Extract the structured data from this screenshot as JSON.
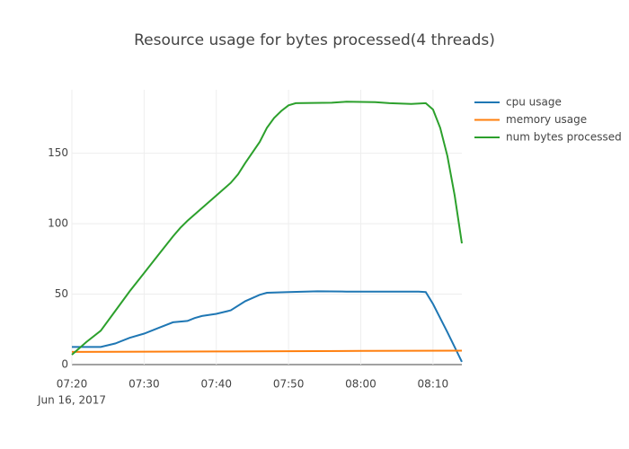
{
  "chart_data": {
    "type": "line",
    "title": "Resource usage for bytes processed(4 threads)",
    "date_label": "Jun 16, 2017",
    "xlim": [
      "2017-06-16 07:20",
      "2017-06-16 08:14"
    ],
    "xticks": [
      {
        "value": "2017-06-16 07:20",
        "label": "07:20"
      },
      {
        "value": "2017-06-16 07:30",
        "label": "07:30"
      },
      {
        "value": "2017-06-16 07:40",
        "label": "07:40"
      },
      {
        "value": "2017-06-16 07:50",
        "label": "07:50"
      },
      {
        "value": "2017-06-16 08:00",
        "label": "08:00"
      },
      {
        "value": "2017-06-16 08:10",
        "label": "08:10"
      }
    ],
    "ylim": [
      0,
      195
    ],
    "yticks": [
      0,
      50,
      100,
      150
    ],
    "grid": true,
    "legend": "right",
    "series": [
      {
        "name": "cpu usage",
        "color": "#1f77b4",
        "x": [
          "2017-06-16 07:20",
          "2017-06-16 07:24",
          "2017-06-16 07:26",
          "2017-06-16 07:28",
          "2017-06-16 07:30",
          "2017-06-16 07:32",
          "2017-06-16 07:34",
          "2017-06-16 07:36",
          "2017-06-16 07:37",
          "2017-06-16 07:38",
          "2017-06-16 07:40",
          "2017-06-16 07:42",
          "2017-06-16 07:44",
          "2017-06-16 07:46",
          "2017-06-16 07:47",
          "2017-06-16 07:50",
          "2017-06-16 07:54",
          "2017-06-16 07:58",
          "2017-06-16 08:02",
          "2017-06-16 08:08",
          "2017-06-16 08:09",
          "2017-06-16 08:10",
          "2017-06-16 08:12",
          "2017-06-16 08:14"
        ],
        "values": [
          12.5,
          12.5,
          15,
          19,
          22,
          26,
          30,
          31,
          33,
          34.5,
          36,
          38.5,
          45,
          49.5,
          51,
          51.5,
          52,
          51.8,
          51.8,
          51.8,
          51.5,
          43,
          23,
          2
        ]
      },
      {
        "name": "memory usage",
        "color": "#ff7f0e",
        "x": [
          "2017-06-16 07:20",
          "2017-06-16 07:40",
          "2017-06-16 08:00",
          "2017-06-16 08:14"
        ],
        "values": [
          9.0,
          9.3,
          9.7,
          9.9
        ]
      },
      {
        "name": "num bytes processed",
        "color": "#2ca02c",
        "x": [
          "2017-06-16 07:20",
          "2017-06-16 07:22",
          "2017-06-16 07:24",
          "2017-06-16 07:26",
          "2017-06-16 07:28",
          "2017-06-16 07:30",
          "2017-06-16 07:32",
          "2017-06-16 07:34",
          "2017-06-16 07:35",
          "2017-06-16 07:36",
          "2017-06-16 07:38",
          "2017-06-16 07:40",
          "2017-06-16 07:42",
          "2017-06-16 07:43",
          "2017-06-16 07:44",
          "2017-06-16 07:46",
          "2017-06-16 07:47",
          "2017-06-16 07:48",
          "2017-06-16 07:49",
          "2017-06-16 07:50",
          "2017-06-16 07:51",
          "2017-06-16 07:56",
          "2017-06-16 07:58",
          "2017-06-16 08:02",
          "2017-06-16 08:04",
          "2017-06-16 08:07",
          "2017-06-16 08:09",
          "2017-06-16 08:10",
          "2017-06-16 08:11",
          "2017-06-16 08:12",
          "2017-06-16 08:13",
          "2017-06-16 08:14"
        ],
        "values": [
          7,
          16,
          24,
          38,
          52,
          65,
          78,
          91,
          97,
          102,
          111,
          120,
          129,
          135,
          143,
          158,
          168,
          175,
          180,
          184,
          185.5,
          185.8,
          186.5,
          186.3,
          185.5,
          185,
          185.5,
          181,
          168,
          148,
          120,
          86
        ]
      }
    ]
  }
}
